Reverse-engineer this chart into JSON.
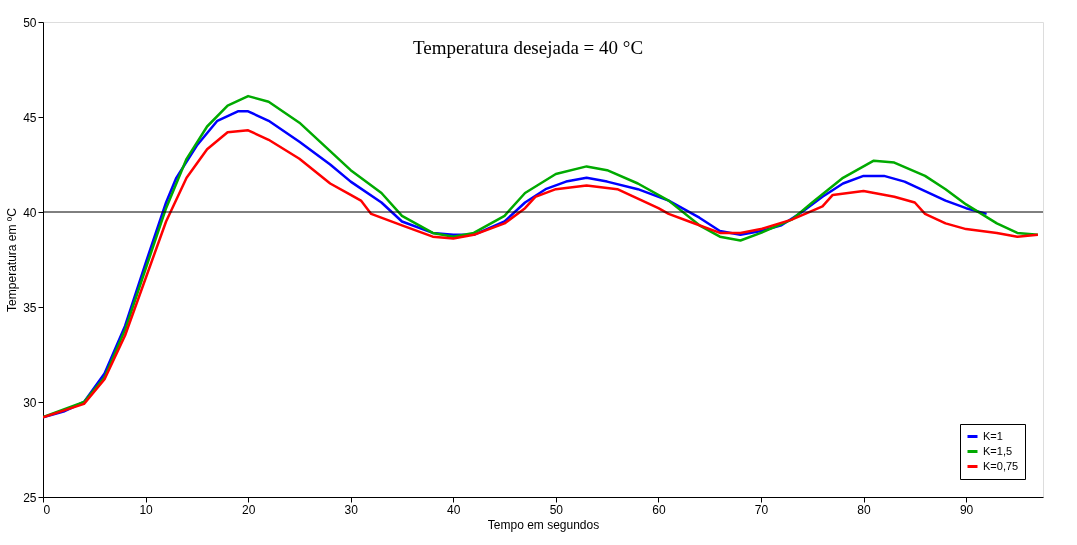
{
  "chart_data": {
    "type": "line",
    "title": "Temperatura desejada = 40 °C",
    "xlabel": "Tempo em segundos",
    "ylabel": "Temperatura em ºC",
    "xlim": [
      0,
      97.5
    ],
    "ylim": [
      25,
      50
    ],
    "xticks": [
      0,
      10,
      20,
      30,
      40,
      50,
      60,
      70,
      80,
      90
    ],
    "yticks": [
      25,
      30,
      35,
      40,
      45,
      50
    ],
    "grid": false,
    "legend": "bottom right",
    "line_style": "solid",
    "marker": "none",
    "ref_lines": [
      {
        "axis": "y",
        "value": 40,
        "color": "#000000"
      }
    ],
    "series": [
      {
        "name": "K=1",
        "color": "#0000ff",
        "x": [
          0,
          2,
          4,
          6,
          8,
          10,
          12,
          13,
          15,
          17,
          19,
          20,
          22,
          25,
          28,
          30,
          33,
          35,
          38,
          40,
          42,
          45,
          47,
          49,
          51,
          53,
          55,
          58,
          61,
          64,
          66,
          68,
          70,
          72,
          74,
          76,
          78,
          80,
          82,
          84,
          86,
          88,
          90,
          92
        ],
        "values": [
          29.2,
          29.5,
          30,
          31.5,
          34,
          37.3,
          40.5,
          41.8,
          43.5,
          44.8,
          45.3,
          45.3,
          44.8,
          43.7,
          42.5,
          41.6,
          40.5,
          39.5,
          38.9,
          38.8,
          38.8,
          39.5,
          40.5,
          41.2,
          41.6,
          41.8,
          41.6,
          41.2,
          40.6,
          39.7,
          39,
          38.8,
          39,
          39.3,
          40,
          40.8,
          41.5,
          41.9,
          41.9,
          41.6,
          41.1,
          40.6,
          40.2,
          39.9
        ]
      },
      {
        "name": "K=1,5",
        "color": "#00aa00",
        "x": [
          0,
          4,
          6,
          8,
          10,
          12,
          14,
          16,
          18,
          20,
          22,
          25,
          28,
          30,
          33,
          35,
          38,
          40,
          42,
          45,
          47,
          50,
          53,
          55,
          58,
          61,
          64,
          66,
          68,
          70,
          73,
          75,
          78,
          81,
          83,
          86,
          88,
          90,
          93,
          95,
          97
        ],
        "values": [
          29.2,
          30,
          31.3,
          33.8,
          37,
          40.2,
          42.8,
          44.5,
          45.6,
          46.1,
          45.8,
          44.7,
          43.2,
          42.2,
          41,
          39.8,
          38.9,
          38.7,
          38.9,
          39.8,
          41,
          42,
          42.4,
          42.2,
          41.5,
          40.6,
          39.3,
          38.7,
          38.5,
          38.9,
          39.6,
          40.5,
          41.8,
          42.7,
          42.6,
          41.9,
          41.2,
          40.4,
          39.4,
          38.9,
          38.8
        ]
      },
      {
        "name": "K=0,75",
        "color": "#ff0000",
        "x": [
          0,
          4,
          6,
          8,
          10,
          12,
          14,
          16,
          18,
          20,
          22,
          25,
          28,
          30,
          31,
          32,
          35,
          38,
          40,
          42,
          45,
          47,
          48,
          50,
          53,
          56,
          58,
          60,
          61,
          63,
          66,
          68,
          70,
          73,
          76,
          77,
          80,
          83,
          85,
          86,
          88,
          90,
          93,
          95,
          97
        ],
        "values": [
          29.2,
          29.9,
          31.2,
          33.5,
          36.5,
          39.5,
          41.8,
          43.3,
          44.2,
          44.3,
          43.8,
          42.8,
          41.5,
          40.9,
          40.6,
          39.9,
          39.3,
          38.7,
          38.6,
          38.8,
          39.4,
          40.2,
          40.8,
          41.2,
          41.4,
          41.2,
          40.7,
          40.2,
          39.9,
          39.5,
          38.9,
          38.9,
          39.1,
          39.6,
          40.3,
          40.9,
          41.1,
          40.8,
          40.5,
          39.9,
          39.4,
          39.1,
          38.9,
          38.7,
          38.8
        ]
      }
    ]
  }
}
